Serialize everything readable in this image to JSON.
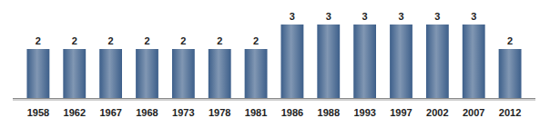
{
  "chart_data": {
    "type": "bar",
    "categories": [
      "1958",
      "1962",
      "1967",
      "1968",
      "1973",
      "1978",
      "1981",
      "1986",
      "1988",
      "1993",
      "1997",
      "2002",
      "2007",
      "2012"
    ],
    "values": [
      2,
      2,
      2,
      2,
      2,
      2,
      2,
      3,
      3,
      3,
      3,
      3,
      3,
      2
    ],
    "color": "#3d5f8a",
    "ylim": [
      0,
      4
    ],
    "grid": false,
    "data_labels": true,
    "tick_labels": "x"
  }
}
